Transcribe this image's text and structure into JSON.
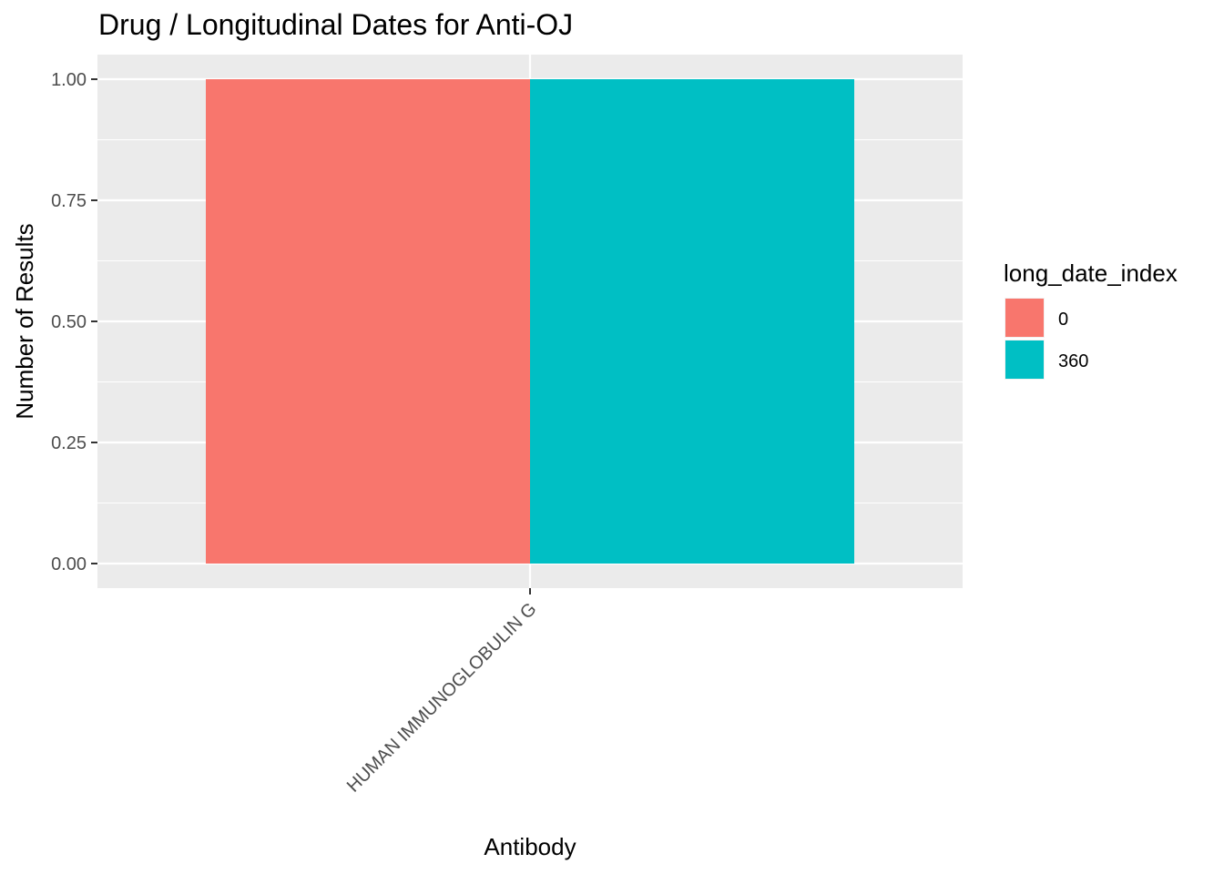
{
  "chart_data": {
    "type": "bar",
    "title": "Drug / Longitudinal Dates for Anti-OJ",
    "xlabel": "Antibody",
    "ylabel": "Number of Results",
    "categories": [
      "HUMAN IMMUNOGLOBULIN G"
    ],
    "series": [
      {
        "name": "0",
        "values": [
          1
        ],
        "color": "#F8766D"
      },
      {
        "name": "360",
        "values": [
          1
        ],
        "color": "#00BFC4"
      }
    ],
    "ylim": [
      0,
      1
    ],
    "yticks": [
      0,
      0.25,
      0.5,
      0.75,
      1
    ],
    "ytick_labels": [
      "0.00",
      "0.25",
      "0.50",
      "0.75",
      "1.00"
    ],
    "legend": {
      "title": "long_date_index",
      "placement": "right"
    },
    "grid": true,
    "panel_background": "#EBEBEB"
  }
}
